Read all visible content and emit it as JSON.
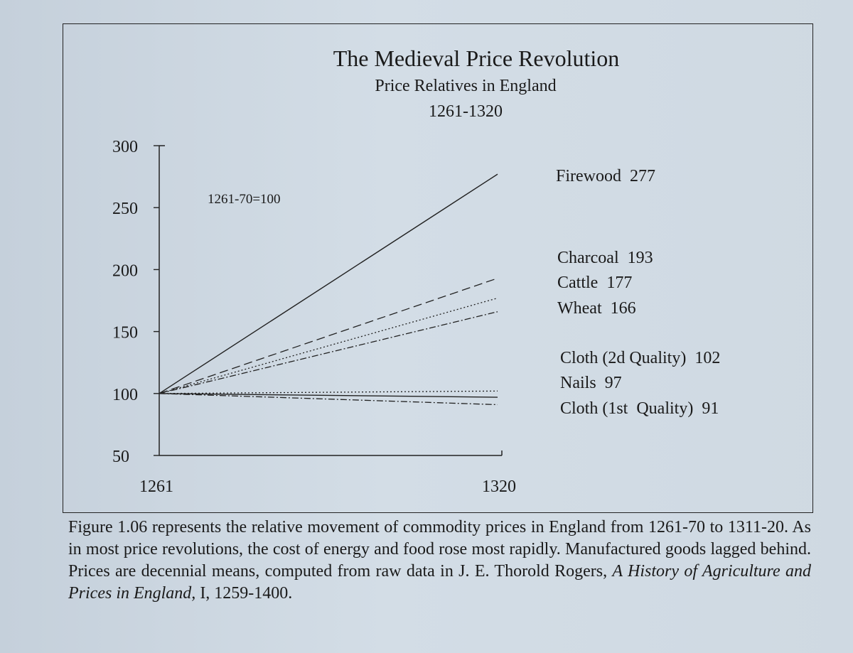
{
  "chart_data": {
    "type": "line",
    "title": "The Medieval Price Revolution",
    "subtitle": "Price Relatives in  England",
    "period": "1261-1320",
    "annotation": "1261-70=100",
    "x": [
      1261,
      1320
    ],
    "xticks": [
      "1261",
      "1320"
    ],
    "yticks": [
      300,
      250,
      200,
      150,
      100,
      50
    ],
    "ylim": [
      50,
      300
    ],
    "series": [
      {
        "name": "Firewood",
        "values": [
          100,
          277
        ],
        "label": "Firewood  277",
        "style": "solid"
      },
      {
        "name": "Charcoal",
        "values": [
          100,
          193
        ],
        "label": "Charcoal  193",
        "style": "dashed"
      },
      {
        "name": "Cattle",
        "values": [
          100,
          177
        ],
        "label": "Cattle  177",
        "style": "dotted"
      },
      {
        "name": "Wheat",
        "values": [
          100,
          166
        ],
        "label": "Wheat  166",
        "style": "dashdot"
      },
      {
        "name": "Cloth (2d Quality)",
        "values": [
          100,
          102
        ],
        "label": "Cloth (2d Quality)  102",
        "style": "dotted"
      },
      {
        "name": "Nails",
        "values": [
          100,
          97
        ],
        "label": "Nails  97",
        "style": "solid"
      },
      {
        "name": "Cloth (1st Quality)",
        "values": [
          100,
          91
        ],
        "label": "Cloth (1st  Quality)  91",
        "style": "dashdot"
      }
    ]
  },
  "caption": {
    "part1": "Figure 1.06 represents the relative movement of commodity prices in England from 1261-70 to 1311-20.  As in most price revolutions, the cost of energy and food rose most rapidly. Manufactured goods lagged behind. Prices are decennial means, computed from raw data in J. E. Thorold Rogers, ",
    "book": "A History of Agriculture and Prices in England,",
    "part2": " I, 1259-1400."
  }
}
